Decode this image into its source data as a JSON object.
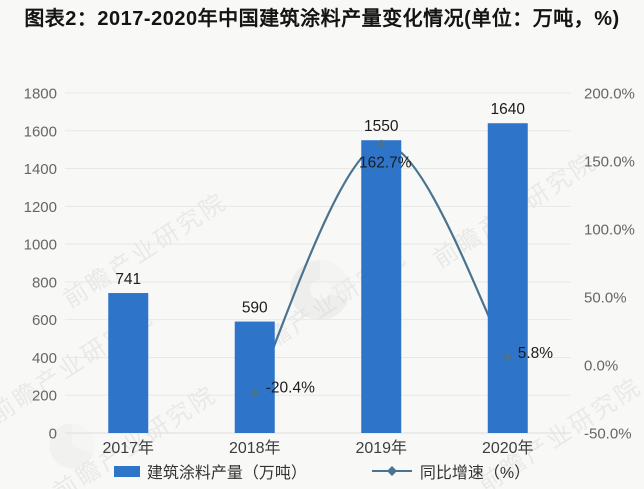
{
  "title": "图表2：2017-2020年中国建筑涂料产量变化情况(单位：万吨，%)",
  "chart_data": {
    "type": "bar+line",
    "categories": [
      "2017年",
      "2018年",
      "2019年",
      "2020年"
    ],
    "series": [
      {
        "name": "建筑涂料产量（万吨）",
        "type": "bar",
        "axis": "left",
        "values": [
          741,
          590,
          1550,
          1640
        ],
        "labels": [
          "741",
          "590",
          "1550",
          "1640"
        ],
        "color": "#2e74c9"
      },
      {
        "name": "同比增速（%）",
        "type": "line",
        "axis": "right",
        "values": [
          null,
          -20.4,
          162.7,
          5.8
        ],
        "labels": [
          "-20.4%",
          "162.7%",
          "5.8%"
        ],
        "color": "#4a7390"
      }
    ],
    "left_axis": {
      "min": 0,
      "max": 1800,
      "tick_step": 200,
      "ticks": [
        "1800",
        "1600",
        "1400",
        "1200",
        "1000",
        "800",
        "600",
        "400",
        "200",
        "0"
      ]
    },
    "right_axis": {
      "min": -50,
      "max": 200,
      "tick_step": 50,
      "ticks": [
        "200.0%",
        "150.0%",
        "100.0%",
        "50.0%",
        "0.0%",
        "-50.0%"
      ]
    },
    "grid": true,
    "legend_position": "bottom"
  },
  "legend": {
    "items": [
      {
        "label": "建筑涂料产量（万吨）",
        "swatch": "bar",
        "color": "#2e74c9"
      },
      {
        "label": "同比增速（%）",
        "swatch": "line-diamond",
        "color": "#4a7390"
      }
    ]
  },
  "watermark": {
    "text": "前瞻产业研究院"
  },
  "colors": {
    "bar": "#2e74c9",
    "line": "#4a7390",
    "grid": "#e8e8e6",
    "tick_text": "#666666",
    "x_label_text": "#3d3d3d",
    "value_label_text": "#1c1c1c",
    "background": "#f8f8f6"
  }
}
